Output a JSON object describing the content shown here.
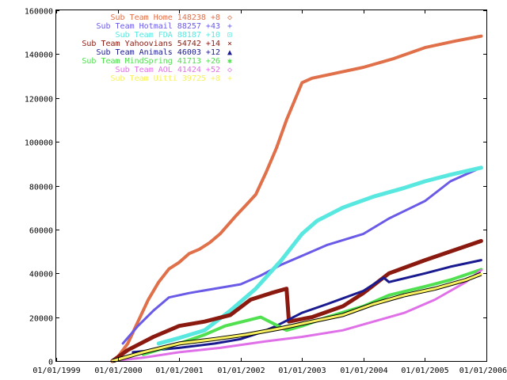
{
  "chart_data": {
    "type": "line",
    "title": "",
    "xlabel": "",
    "ylabel": "",
    "x_ticks": [
      "01/01/1999",
      "01/01/2000",
      "01/01/2001",
      "01/01/2002",
      "01/01/2003",
      "01/01/2004",
      "01/01/2005",
      "01/01/2006"
    ],
    "y_ticks": [
      0,
      20000,
      40000,
      60000,
      80000,
      100000,
      120000,
      140000,
      160000
    ],
    "ylim": [
      0,
      160000
    ],
    "xlim": [
      "1999-01-01",
      "2006-01-01"
    ],
    "legend_position": "top-left",
    "grid": false,
    "series": [
      {
        "name": "Sub Team Home 148238 +8",
        "marker": "◇",
        "color": "#e0704a",
        "width": 4,
        "points": [
          [
            "1999-12-15",
            0
          ],
          [
            "2000-03-01",
            8000
          ],
          [
            "2000-05-01",
            18000
          ],
          [
            "2000-07-01",
            28000
          ],
          [
            "2000-09-01",
            36000
          ],
          [
            "2000-11-01",
            42000
          ],
          [
            "2001-01-01",
            45000
          ],
          [
            "2001-03-01",
            49000
          ],
          [
            "2001-05-01",
            51000
          ],
          [
            "2001-07-01",
            54000
          ],
          [
            "2001-09-01",
            58000
          ],
          [
            "2001-12-01",
            66000
          ],
          [
            "2002-02-01",
            71000
          ],
          [
            "2002-04-01",
            76000
          ],
          [
            "2002-06-01",
            86000
          ],
          [
            "2002-08-01",
            97000
          ],
          [
            "2002-10-01",
            110000
          ],
          [
            "2003-01-01",
            127000
          ],
          [
            "2003-03-01",
            129000
          ],
          [
            "2003-07-01",
            131000
          ],
          [
            "2004-01-01",
            134000
          ],
          [
            "2004-07-01",
            138000
          ],
          [
            "2005-01-01",
            143000
          ],
          [
            "2005-07-01",
            146000
          ],
          [
            "2005-12-01",
            148238
          ]
        ]
      },
      {
        "name": "Sub Team Hotmail 88257 +43",
        "marker": "+",
        "color": "#6a5ae8",
        "width": 3,
        "points": [
          [
            "2000-02-01",
            8000
          ],
          [
            "2000-05-01",
            16000
          ],
          [
            "2000-08-01",
            23000
          ],
          [
            "2000-11-01",
            29000
          ],
          [
            "2001-03-01",
            31000
          ],
          [
            "2001-08-01",
            33000
          ],
          [
            "2002-01-01",
            35000
          ],
          [
            "2002-05-01",
            39000
          ],
          [
            "2002-09-01",
            44000
          ],
          [
            "2003-01-01",
            48000
          ],
          [
            "2003-06-01",
            53000
          ],
          [
            "2004-01-01",
            58000
          ],
          [
            "2004-06-01",
            65000
          ],
          [
            "2005-01-01",
            73000
          ],
          [
            "2005-06-01",
            82000
          ],
          [
            "2005-12-01",
            88257
          ]
        ]
      },
      {
        "name": "Sub Team FDA 88187 +10",
        "marker": "⊡",
        "color": "#58e8e0",
        "width": 5,
        "points": [
          [
            "2000-09-01",
            8000
          ],
          [
            "2001-01-01",
            10500
          ],
          [
            "2001-06-01",
            14000
          ],
          [
            "2001-11-01",
            23000
          ],
          [
            "2002-04-01",
            33000
          ],
          [
            "2002-09-01",
            46000
          ],
          [
            "2003-01-01",
            58000
          ],
          [
            "2003-04-01",
            64000
          ],
          [
            "2003-09-01",
            70000
          ],
          [
            "2004-03-01",
            75000
          ],
          [
            "2004-09-01",
            79000
          ],
          [
            "2005-01-01",
            82000
          ],
          [
            "2005-06-01",
            85000
          ],
          [
            "2005-12-01",
            88187
          ]
        ]
      },
      {
        "name": "Sub Team Yahoovians 54742 +14",
        "marker": "×",
        "color": "#8a1a10",
        "width": 5,
        "points": [
          [
            "1999-12-01",
            0
          ],
          [
            "2000-03-01",
            5000
          ],
          [
            "2000-08-01",
            11000
          ],
          [
            "2001-01-01",
            16000
          ],
          [
            "2001-06-01",
            18000
          ],
          [
            "2001-11-01",
            21000
          ],
          [
            "2002-03-01",
            28000
          ],
          [
            "2002-07-01",
            31000
          ],
          [
            "2002-10-01",
            33000
          ],
          [
            "2002-10-15",
            18000
          ],
          [
            "2003-03-01",
            20000
          ],
          [
            "2003-09-01",
            25000
          ],
          [
            "2004-01-01",
            31000
          ],
          [
            "2004-06-01",
            40000
          ],
          [
            "2005-01-01",
            46000
          ],
          [
            "2005-06-01",
            50000
          ],
          [
            "2005-12-01",
            54742
          ]
        ]
      },
      {
        "name": "Sub Team Animals 46003 +12",
        "marker": "▲",
        "color": "#1a1a90",
        "width": 3,
        "points": [
          [
            "2000-04-01",
            4000
          ],
          [
            "2001-01-01",
            6000
          ],
          [
            "2001-08-01",
            8000
          ],
          [
            "2002-01-01",
            10000
          ],
          [
            "2002-05-01",
            13000
          ],
          [
            "2002-08-01",
            16000
          ],
          [
            "2003-01-01",
            22000
          ],
          [
            "2003-06-01",
            26000
          ],
          [
            "2004-01-01",
            32000
          ],
          [
            "2004-05-01",
            38000
          ],
          [
            "2004-06-01",
            36000
          ],
          [
            "2005-01-01",
            40000
          ],
          [
            "2005-06-01",
            43000
          ],
          [
            "2005-12-01",
            46003
          ]
        ]
      },
      {
        "name": "Sub Team MindSpring 41713 +26",
        "marker": "✱",
        "color": "#50e050",
        "width": 4,
        "points": [
          [
            "2000-06-01",
            3000
          ],
          [
            "2001-01-01",
            8000
          ],
          [
            "2001-06-01",
            12000
          ],
          [
            "2001-10-01",
            16000
          ],
          [
            "2002-05-01",
            20000
          ],
          [
            "2002-10-01",
            14000
          ],
          [
            "2003-01-01",
            16000
          ],
          [
            "2003-06-01",
            20000
          ],
          [
            "2004-01-01",
            25000
          ],
          [
            "2004-06-01",
            30000
          ],
          [
            "2005-01-01",
            34000
          ],
          [
            "2005-06-01",
            37000
          ],
          [
            "2005-12-01",
            41713
          ]
        ]
      },
      {
        "name": "Sub Team AOL 41424 +52",
        "marker": "◇",
        "color": "#e070e8",
        "width": 3,
        "points": [
          [
            "1999-12-01",
            0
          ],
          [
            "2000-06-01",
            1500
          ],
          [
            "2001-01-01",
            4000
          ],
          [
            "2001-09-01",
            6000
          ],
          [
            "2002-06-01",
            9000
          ],
          [
            "2003-01-01",
            11000
          ],
          [
            "2003-09-01",
            14000
          ],
          [
            "2004-03-01",
            18000
          ],
          [
            "2004-09-01",
            22000
          ],
          [
            "2005-03-01",
            28000
          ],
          [
            "2005-09-01",
            36000
          ],
          [
            "2005-12-01",
            41424
          ]
        ]
      },
      {
        "name": "Sub Team Uitti 39725 +8",
        "marker": "+",
        "color": "#f8f060",
        "width": 3,
        "outline": true,
        "points": [
          [
            "1999-12-01",
            0
          ],
          [
            "2000-06-01",
            4000
          ],
          [
            "2001-01-01",
            8000
          ],
          [
            "2001-08-01",
            10000
          ],
          [
            "2002-02-01",
            12000
          ],
          [
            "2002-09-01",
            15000
          ],
          [
            "2003-03-01",
            18000
          ],
          [
            "2003-09-01",
            21000
          ],
          [
            "2004-03-01",
            26000
          ],
          [
            "2004-09-01",
            30000
          ],
          [
            "2005-03-01",
            33000
          ],
          [
            "2005-09-01",
            37000
          ],
          [
            "2005-12-01",
            39725
          ]
        ]
      }
    ]
  }
}
